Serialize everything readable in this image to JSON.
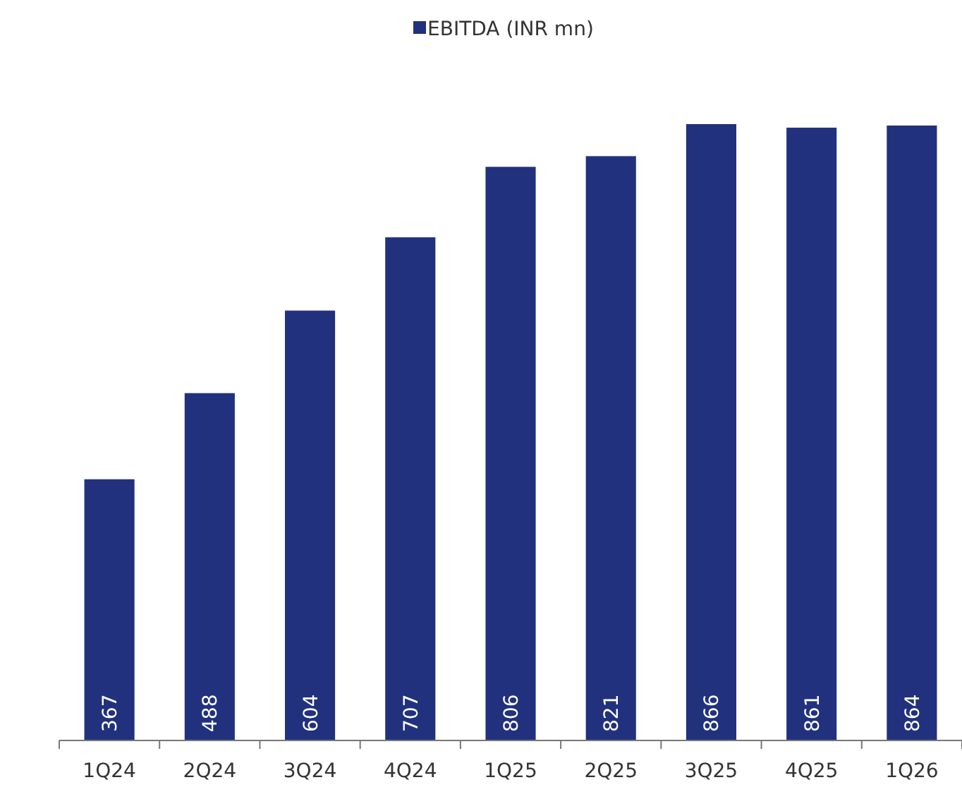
{
  "chart_data": {
    "type": "bar",
    "categories": [
      "1Q24",
      "2Q24",
      "3Q24",
      "4Q24",
      "1Q25",
      "2Q25",
      "3Q25",
      "4Q25",
      "1Q26"
    ],
    "series": [
      {
        "name": "EBITDA (INR mn)",
        "color": "#21317e",
        "values": [
          367,
          488,
          604,
          707,
          806,
          821,
          866,
          861,
          864
        ]
      }
    ],
    "data_labels": true,
    "legend": "top",
    "grid": false
  }
}
